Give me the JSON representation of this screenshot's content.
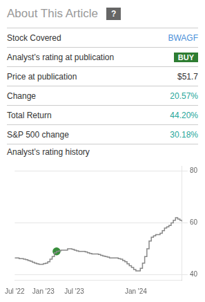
{
  "chart_data": {
    "type": "line",
    "title": "About This Article",
    "subtitle": "Analyst’s rating history",
    "annotations": [
      {
        "text": "?",
        "type": "badge",
        "color": "#666666"
      },
      {
        "text": "Stock Covered",
        "value": "BWAGF",
        "color": "#4a90d9"
      },
      {
        "text": "Analyst’s rating at publication",
        "value": "BUY",
        "type": "badge",
        "color": "#2e7d32"
      },
      {
        "text": "Price at publication",
        "value": "$51.7"
      },
      {
        "text": "Change",
        "value": "20.57%",
        "color": "#26a69a"
      },
      {
        "text": "Total Return",
        "value": "44.20%",
        "color": "#26a69a"
      },
      {
        "text": "S&P 500 change",
        "value": "30.18%",
        "color": "#26a69a"
      }
    ],
    "categories": [
      "Jul '22",
      null,
      null,
      null,
      null,
      null,
      null,
      null,
      null,
      null,
      null,
      null,
      null,
      "Jan '23",
      null,
      null,
      null,
      null,
      null,
      null,
      null,
      null,
      null,
      null,
      null,
      null,
      null,
      "Jul '23",
      null,
      null,
      null,
      null,
      null,
      null,
      null,
      null,
      null,
      null,
      null,
      null,
      null,
      null,
      null,
      null,
      null,
      null,
      null,
      null,
      null,
      null,
      null,
      null,
      null,
      null,
      null,
      "Jan '24",
      null,
      null,
      null,
      null,
      null,
      null,
      null,
      null,
      null,
      null,
      null,
      null,
      null,
      null,
      null,
      null,
      null,
      null,
      null,
      null,
      null
    ],
    "series": [
      {
        "color": "#888888",
        "line_style": "step",
        "values": [
          46.5,
          46.5,
          46.2,
          46.2,
          46.0,
          45.8,
          45.5,
          45.2,
          44.8,
          44.5,
          44.2,
          44.0,
          44.0,
          44.3,
          44.5,
          45.0,
          46.0,
          47.0,
          48.5,
          49.0,
          49.2,
          49.5,
          49.5,
          49.5,
          50.0,
          50.0,
          49.8,
          49.5,
          49.2,
          49.0,
          49.0,
          49.0,
          48.8,
          48.5,
          48.2,
          48.0,
          48.0,
          48.0,
          47.8,
          47.5,
          47.2,
          47.0,
          46.8,
          46.5,
          46.5,
          46.5,
          46.5,
          46.2,
          46.0,
          45.5,
          45.0,
          44.2,
          43.5,
          42.8,
          42.0,
          41.5,
          41.5,
          42.5,
          44.5,
          47.0,
          50.0,
          53.0,
          54.5,
          55.0,
          55.5,
          55.5,
          56.0,
          57.0,
          58.0,
          58.5,
          59.0,
          60.0,
          61.0,
          62.0,
          61.5,
          61.0,
          60.5
        ]
      },
      {
        "color": "#388e3c",
        "type": "scatter",
        "marker": "circle",
        "values": [
          null,
          null,
          null,
          null,
          null,
          null,
          null,
          null,
          null,
          null,
          null,
          null,
          null,
          null,
          null,
          null,
          null,
          null,
          null,
          49.0,
          null,
          null,
          null,
          null,
          null,
          null,
          null,
          null,
          null,
          null,
          null,
          null,
          null,
          null,
          null,
          null,
          null,
          null,
          null,
          null,
          null,
          null,
          null,
          null,
          null,
          null,
          null,
          null,
          null,
          null,
          null,
          null,
          null,
          null,
          null,
          null,
          null,
          null,
          null,
          null,
          null,
          null,
          null,
          null,
          null,
          null,
          null,
          null,
          null,
          null,
          null,
          null,
          null,
          null,
          null,
          null,
          null
        ]
      }
    ],
    "ylim": [
      38,
      82
    ],
    "yticks": [
      40,
      60,
      80
    ],
    "grid": true
  }
}
